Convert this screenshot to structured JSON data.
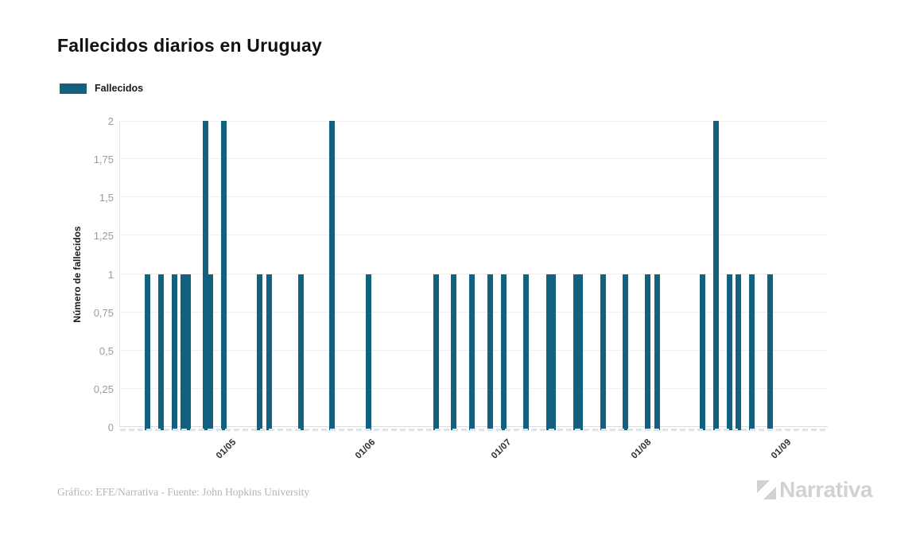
{
  "header": {
    "title": "Fallecidos diarios en Uruguay"
  },
  "legend": {
    "label": "Fallecidos",
    "swatch_color": "#14607f"
  },
  "chart_data": {
    "type": "bar",
    "title": "Fallecidos diarios en Uruguay",
    "xlabel": "",
    "ylabel": "Número de fallecidos",
    "legend_entries": [
      "Fallecidos"
    ],
    "bar_color": "#14607f",
    "grid": "horizontal",
    "legend_position": "top-left",
    "ylim": [
      0,
      2
    ],
    "y_ticks": [
      {
        "value": 0,
        "label": "0"
      },
      {
        "value": 0.25,
        "label": "0,25"
      },
      {
        "value": 0.5,
        "label": "0,5"
      },
      {
        "value": 0.75,
        "label": "0,75"
      },
      {
        "value": 1,
        "label": "1"
      },
      {
        "value": 1.25,
        "label": "1,25"
      },
      {
        "value": 1.5,
        "label": "1,5"
      },
      {
        "value": 1.75,
        "label": "1,75"
      },
      {
        "value": 2,
        "label": "2"
      }
    ],
    "x_domain": {
      "start": "08/04",
      "end": "12/09"
    },
    "x_ticks": [
      "01/05",
      "01/06",
      "01/07",
      "01/08",
      "01/09"
    ],
    "bars": [
      {
        "date": "14/04",
        "value": 1
      },
      {
        "date": "17/04",
        "value": 1
      },
      {
        "date": "20/04",
        "value": 1
      },
      {
        "date": "22/04",
        "value": 1
      },
      {
        "date": "23/04",
        "value": 1
      },
      {
        "date": "27/04",
        "value": 2
      },
      {
        "date": "28/04",
        "value": 1
      },
      {
        "date": "01/05",
        "value": 2
      },
      {
        "date": "09/05",
        "value": 1
      },
      {
        "date": "11/05",
        "value": 1
      },
      {
        "date": "18/05",
        "value": 1
      },
      {
        "date": "25/05",
        "value": 2
      },
      {
        "date": "02/06",
        "value": 1
      },
      {
        "date": "17/06",
        "value": 1
      },
      {
        "date": "21/06",
        "value": 1
      },
      {
        "date": "25/06",
        "value": 1
      },
      {
        "date": "29/06",
        "value": 1
      },
      {
        "date": "02/07",
        "value": 1
      },
      {
        "date": "07/07",
        "value": 1
      },
      {
        "date": "12/07",
        "value": 1
      },
      {
        "date": "13/07",
        "value": 1
      },
      {
        "date": "18/07",
        "value": 1
      },
      {
        "date": "19/07",
        "value": 1
      },
      {
        "date": "24/07",
        "value": 1
      },
      {
        "date": "29/07",
        "value": 1
      },
      {
        "date": "03/08",
        "value": 1
      },
      {
        "date": "05/08",
        "value": 1
      },
      {
        "date": "15/08",
        "value": 1
      },
      {
        "date": "18/08",
        "value": 2
      },
      {
        "date": "21/08",
        "value": 1
      },
      {
        "date": "23/08",
        "value": 1
      },
      {
        "date": "26/08",
        "value": 1
      },
      {
        "date": "30/08",
        "value": 1
      }
    ]
  },
  "footer": {
    "credit": "Gráfico: EFE/Narrativa - Fuente: John Hopkins University",
    "logo_text": "Narrativa"
  }
}
